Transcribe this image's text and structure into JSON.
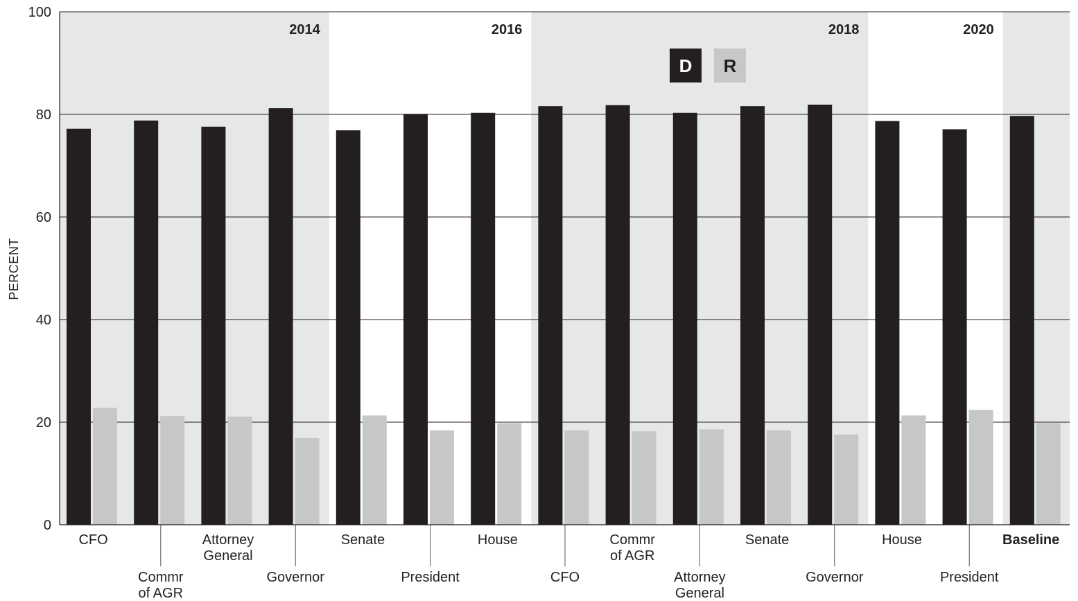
{
  "chart_data": {
    "type": "bar",
    "title": "",
    "xlabel": "",
    "ylabel": "PERCENT",
    "ylim": [
      0,
      100
    ],
    "yticks": [
      0,
      20,
      40,
      60,
      80,
      100
    ],
    "grid": "horizontal",
    "legend_position": "top-center",
    "categories": [
      {
        "lines": [
          "CFO"
        ],
        "row": "upper",
        "bold": false
      },
      {
        "lines": [
          "Commr",
          "of AGR"
        ],
        "row": "lower",
        "bold": false
      },
      {
        "lines": [
          "Attorney",
          "General"
        ],
        "row": "upper",
        "bold": false
      },
      {
        "lines": [
          "Governor"
        ],
        "row": "lower",
        "bold": false
      },
      {
        "lines": [
          "Senate"
        ],
        "row": "upper",
        "bold": false
      },
      {
        "lines": [
          "President"
        ],
        "row": "lower",
        "bold": false
      },
      {
        "lines": [
          "House"
        ],
        "row": "upper",
        "bold": false
      },
      {
        "lines": [
          "CFO"
        ],
        "row": "lower",
        "bold": false
      },
      {
        "lines": [
          "Commr",
          "of AGR"
        ],
        "row": "upper",
        "bold": false
      },
      {
        "lines": [
          "Attorney",
          "General"
        ],
        "row": "lower",
        "bold": false
      },
      {
        "lines": [
          "Senate"
        ],
        "row": "upper",
        "bold": false
      },
      {
        "lines": [
          "Governor"
        ],
        "row": "lower",
        "bold": false
      },
      {
        "lines": [
          "House"
        ],
        "row": "upper",
        "bold": false
      },
      {
        "lines": [
          "President"
        ],
        "row": "lower",
        "bold": false
      },
      {
        "lines": [
          "Baseline"
        ],
        "row": "upper",
        "bold": true
      }
    ],
    "series": [
      {
        "name": "D",
        "color": "#231f20",
        "values": [
          77.2,
          78.8,
          77.6,
          81.2,
          76.9,
          80.1,
          80.3,
          81.6,
          81.8,
          80.3,
          81.6,
          81.9,
          78.7,
          77.1,
          79.7
        ]
      },
      {
        "name": "R",
        "color": "#c6c7c9",
        "values": [
          22.8,
          21.2,
          21.1,
          16.9,
          21.3,
          18.4,
          19.8,
          18.4,
          18.2,
          18.6,
          18.4,
          17.6,
          21.3,
          22.4,
          19.8
        ]
      }
    ],
    "groups": [
      {
        "label": "2014",
        "start": 0,
        "end": 3,
        "shaded": true
      },
      {
        "label": "2016",
        "start": 4,
        "end": 6,
        "shaded": false
      },
      {
        "label": "2018",
        "start": 7,
        "end": 11,
        "shaded": true
      },
      {
        "label": "2020",
        "start": 12,
        "end": 13,
        "shaded": false
      },
      {
        "label": "",
        "start": 14,
        "end": 14,
        "shaded": true
      }
    ],
    "colors": {
      "band": "#e6e7e8",
      "gridline": "#231f20",
      "axis": "#231f20",
      "label": "#222222"
    }
  }
}
